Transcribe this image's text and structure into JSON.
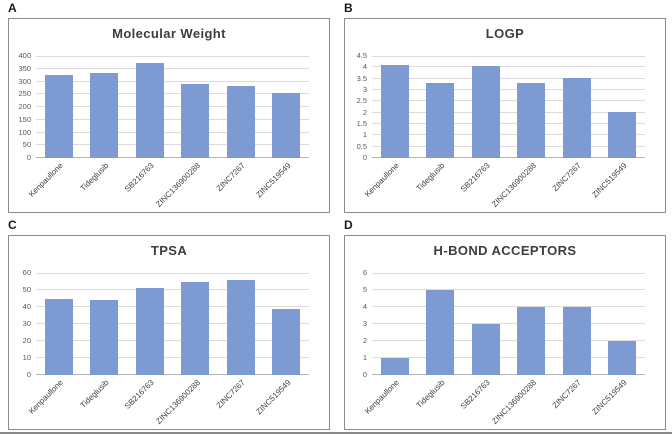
{
  "style": {
    "bar_color": "#7d9bd2",
    "gridline_color": "#dcdcdc",
    "axis_line_color": "#b3b3b3",
    "box_border_color": "#8c8c8c"
  },
  "chart_data": [
    {
      "type": "bar",
      "panel_label": "A",
      "title": "Molecular Weight",
      "categories": [
        "Kenpaullone",
        "Tideglusib",
        "SB216763",
        "ZINC136900288",
        "ZINC7267",
        "ZINC519549"
      ],
      "values": [
        327,
        334,
        371,
        290,
        283,
        256
      ],
      "xlabel": "",
      "ylabel": "",
      "ylim": [
        0,
        400
      ],
      "ytick_step": 50,
      "grid": "on",
      "legend": "none"
    },
    {
      "type": "bar",
      "panel_label": "B",
      "title": "LOGP",
      "categories": [
        "Kenpaullone",
        "Tideglusib",
        "SB216763",
        "ZINC136900288",
        "ZINC7267",
        "ZINC519549"
      ],
      "values": [
        4.1,
        3.3,
        4.05,
        3.3,
        3.55,
        2.05
      ],
      "xlabel": "",
      "ylabel": "",
      "ylim": [
        0,
        4.5
      ],
      "ytick_step": 0.5,
      "grid": "on",
      "legend": "none"
    },
    {
      "type": "bar",
      "panel_label": "C",
      "title": "TPSA",
      "categories": [
        "Kenpaullone",
        "Tideglusib",
        "SB216763",
        "ZINC136900288",
        "ZINC7267",
        "ZINC519549"
      ],
      "values": [
        45,
        44,
        51,
        55,
        56,
        39
      ],
      "xlabel": "",
      "ylabel": "",
      "ylim": [
        0,
        60
      ],
      "ytick_step": 10,
      "grid": "on",
      "legend": "none"
    },
    {
      "type": "bar",
      "panel_label": "D",
      "title": "H-BOND ACCEPTORS",
      "categories": [
        "Kenpaullone",
        "Tideglusib",
        "SB216763",
        "ZINC136900288",
        "ZINC7267",
        "ZINC519549"
      ],
      "values": [
        1,
        5,
        3,
        4,
        4,
        2
      ],
      "xlabel": "",
      "ylabel": "",
      "ylim": [
        0,
        6
      ],
      "ytick_step": 1,
      "grid": "on",
      "legend": "none"
    }
  ]
}
